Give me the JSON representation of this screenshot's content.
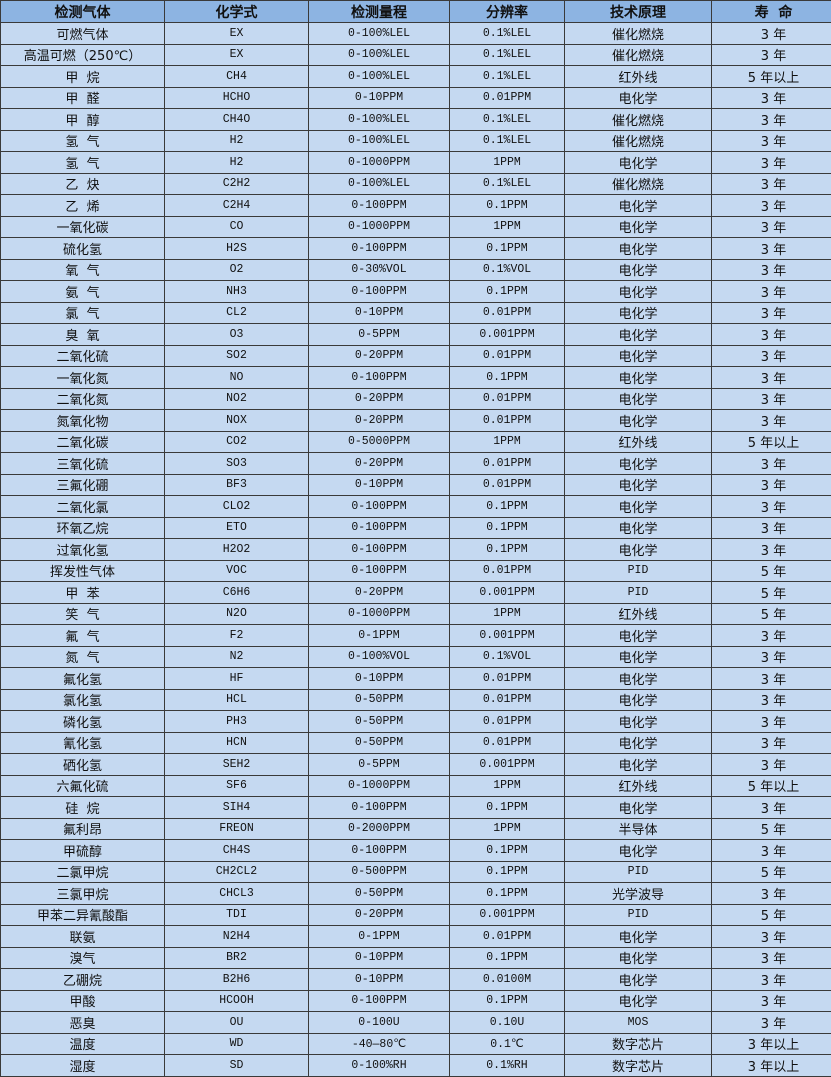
{
  "headers": [
    "检测气体",
    "化学式",
    "检测量程",
    "分辨率",
    "技术原理",
    "寿  命"
  ],
  "rows": [
    [
      "可燃气体",
      "EX",
      "0-100%LEL",
      "0.1%LEL",
      "催化燃烧",
      "3 年"
    ],
    [
      "高温可燃（250℃）",
      "EX",
      "0-100%LEL",
      "0.1%LEL",
      "催化燃烧",
      "3 年"
    ],
    [
      "甲  烷",
      "CH4",
      "0-100%LEL",
      "0.1%LEL",
      "红外线",
      "5 年以上"
    ],
    [
      "甲  醛",
      "HCHO",
      "0-10PPM",
      "0.01PPM",
      "电化学",
      "3 年"
    ],
    [
      "甲  醇",
      "CH4O",
      "0-100%LEL",
      "0.1%LEL",
      "催化燃烧",
      "3 年"
    ],
    [
      "氢  气",
      "H2",
      "0-100%LEL",
      "0.1%LEL",
      "催化燃烧",
      "3 年"
    ],
    [
      "氢  气",
      "H2",
      "0-1000PPM",
      "1PPM",
      "电化学",
      "3 年"
    ],
    [
      "乙  炔",
      "C2H2",
      "0-100%LEL",
      "0.1%LEL",
      "催化燃烧",
      "3 年"
    ],
    [
      "乙  烯",
      "C2H4",
      "0-100PPM",
      "0.1PPM",
      "电化学",
      "3 年"
    ],
    [
      "一氧化碳",
      "CO",
      "0-1000PPM",
      "1PPM",
      "电化学",
      "3 年"
    ],
    [
      "硫化氢",
      "H2S",
      "0-100PPM",
      "0.1PPM",
      "电化学",
      "3 年"
    ],
    [
      "氧  气",
      "O2",
      "0-30%VOL",
      "0.1%VOL",
      "电化学",
      "3 年"
    ],
    [
      "氨  气",
      "NH3",
      "0-100PPM",
      "0.1PPM",
      "电化学",
      "3 年"
    ],
    [
      "氯  气",
      "CL2",
      "0-10PPM",
      "0.01PPM",
      "电化学",
      "3 年"
    ],
    [
      "臭  氧",
      "O3",
      "0-5PPM",
      "0.001PPM",
      "电化学",
      "3 年"
    ],
    [
      "二氧化硫",
      "SO2",
      "0-20PPM",
      "0.01PPM",
      "电化学",
      "3 年"
    ],
    [
      "一氧化氮",
      "NO",
      "0-100PPM",
      "0.1PPM",
      "电化学",
      "3 年"
    ],
    [
      "二氧化氮",
      "NO2",
      "0-20PPM",
      "0.01PPM",
      "电化学",
      "3 年"
    ],
    [
      "氮氧化物",
      "NOX",
      "0-20PPM",
      "0.01PPM",
      "电化学",
      "3 年"
    ],
    [
      "二氧化碳",
      "CO2",
      "0-5000PPM",
      "1PPM",
      "红外线",
      "5 年以上"
    ],
    [
      "三氧化硫",
      "SO3",
      "0-20PPM",
      "0.01PPM",
      "电化学",
      "3 年"
    ],
    [
      "三氟化硼",
      "BF3",
      "0-10PPM",
      "0.01PPM",
      "电化学",
      "3 年"
    ],
    [
      "二氧化氯",
      "CLO2",
      "0-100PPM",
      "0.1PPM",
      "电化学",
      "3 年"
    ],
    [
      "环氧乙烷",
      "ETO",
      "0-100PPM",
      "0.1PPM",
      "电化学",
      "3 年"
    ],
    [
      "过氧化氢",
      "H2O2",
      "0-100PPM",
      "0.1PPM",
      "电化学",
      "3 年"
    ],
    [
      "挥发性气体",
      "VOC",
      "0-100PPM",
      "0.01PPM",
      "PID",
      "5 年"
    ],
    [
      "甲  苯",
      "C6H6",
      "0-20PPM",
      "0.001PPM",
      "PID",
      "5 年"
    ],
    [
      "笑  气",
      "N2O",
      "0-1000PPM",
      "1PPM",
      "红外线",
      "5 年"
    ],
    [
      "氟  气",
      "F2",
      "0-1PPM",
      "0.001PPM",
      "电化学",
      "3 年"
    ],
    [
      "氮  气",
      "N2",
      "0-100%VOL",
      "0.1%VOL",
      "电化学",
      "3 年"
    ],
    [
      "氟化氢",
      "HF",
      "0-10PPM",
      "0.01PPM",
      "电化学",
      "3 年"
    ],
    [
      "氯化氢",
      "HCL",
      "0-50PPM",
      "0.01PPM",
      "电化学",
      "3 年"
    ],
    [
      "磷化氢",
      "PH3",
      "0-50PPM",
      "0.01PPM",
      "电化学",
      "3 年"
    ],
    [
      "氰化氢",
      "HCN",
      "0-50PPM",
      "0.01PPM",
      "电化学",
      "3 年"
    ],
    [
      "硒化氢",
      "SEH2",
      "0-5PPM",
      "0.001PPM",
      "电化学",
      "3 年"
    ],
    [
      "六氟化硫",
      "SF6",
      "0-1000PPM",
      "1PPM",
      "红外线",
      "5 年以上"
    ],
    [
      "硅  烷",
      "SIH4",
      "0-100PPM",
      "0.1PPM",
      "电化学",
      "3 年"
    ],
    [
      "氟利昂",
      "FREON",
      "0-2000PPM",
      "1PPM",
      "半导体",
      "5 年"
    ],
    [
      "甲硫醇",
      "CH4S",
      "0-100PPM",
      "0.1PPM",
      "电化学",
      "3 年"
    ],
    [
      "二氯甲烷",
      "CH2CL2",
      "0-500PPM",
      "0.1PPM",
      "PID",
      "5 年"
    ],
    [
      "三氯甲烷",
      "CHCL3",
      "0-50PPM",
      "0.1PPM",
      "光学波导",
      "3 年"
    ],
    [
      "甲苯二异氰酸酯",
      "TDI",
      "0-20PPM",
      "0.001PPM",
      "PID",
      "5 年"
    ],
    [
      "联氨",
      "N2H4",
      "0-1PPM",
      "0.01PPM",
      "电化学",
      "3 年"
    ],
    [
      "溴气",
      "BR2",
      "0-10PPM",
      "0.1PPM",
      "电化学",
      "3 年"
    ],
    [
      "乙硼烷",
      "B2H6",
      "0-10PPM",
      "0.0100M",
      "电化学",
      "3 年"
    ],
    [
      "甲酸",
      "HCOOH",
      "0-100PPM",
      "0.1PPM",
      "电化学",
      "3 年"
    ],
    [
      "恶臭",
      "OU",
      "0-100U",
      "0.10U",
      "MOS",
      "3 年"
    ],
    [
      "温度",
      "WD",
      "-40—80℃",
      "0.1℃",
      "数字芯片",
      "3 年以上"
    ],
    [
      "湿度",
      "SD",
      "0-100%RH",
      "0.1%RH",
      "数字芯片",
      "3 年以上"
    ]
  ]
}
